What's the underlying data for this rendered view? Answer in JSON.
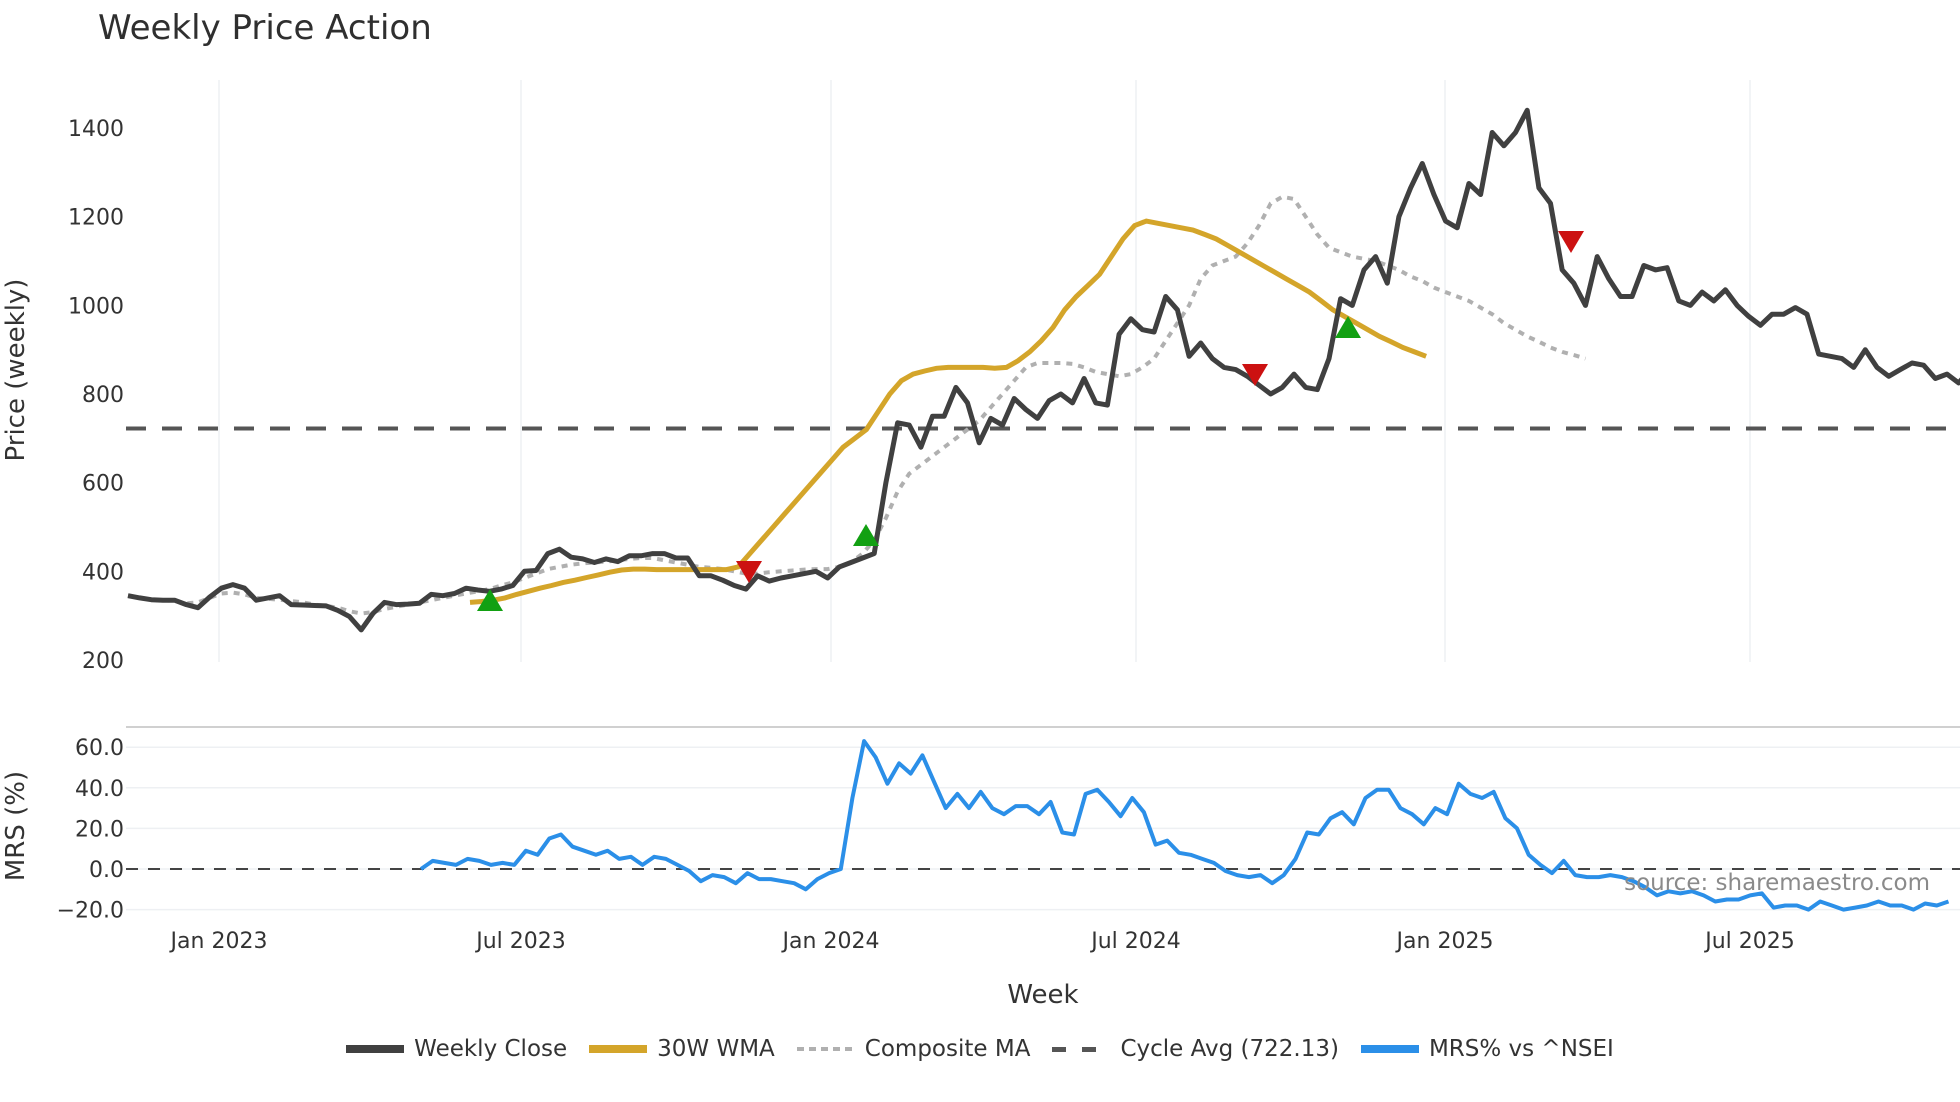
{
  "title": "Weekly Price Action",
  "source_text": "source: sharemaestro.com",
  "colors": {
    "weekly_close": "#404040",
    "wma30": "#d4a52a",
    "composite_ma": "#b0b0b0",
    "cycle_avg": "#555555",
    "mrs": "#2b8fe8",
    "buy_marker": "#12a012",
    "sell_marker": "#cc1111"
  },
  "legend": [
    {
      "key": "weekly_close",
      "label": "Weekly Close",
      "style": "solid"
    },
    {
      "key": "wma30",
      "label": "30W WMA",
      "style": "solid"
    },
    {
      "key": "composite_ma",
      "label": "Composite MA",
      "style": "dotted"
    },
    {
      "key": "cycle_avg",
      "label": "Cycle Avg (722.13)",
      "style": "dashed"
    },
    {
      "key": "mrs",
      "label": "MRS% vs ^NSEI",
      "style": "solid"
    }
  ],
  "chart_data": [
    {
      "type": "line",
      "title": "Weekly Price Action",
      "xlabel": "Week",
      "ylabel": "Price (weekly)",
      "ylim": [
        200,
        1450
      ],
      "yticks": [
        200,
        400,
        600,
        800,
        1000,
        1200,
        1400
      ],
      "xticks": [
        "Jan 2023",
        "Jul 2023",
        "Jan 2024",
        "Jul 2024",
        "Jan 2025",
        "Jul 2025"
      ],
      "grid": "vertical",
      "cycle_avg": 722.13,
      "series": [
        {
          "name": "Weekly Close",
          "x_start": "Nov 2022",
          "values": [
            345,
            340,
            336,
            335,
            335,
            325,
            318,
            342,
            362,
            370,
            362,
            335,
            340,
            345,
            325,
            324,
            323,
            322,
            312,
            298,
            268,
            305,
            330,
            325,
            326,
            328,
            348,
            345,
            350,
            362,
            358,
            355,
            360,
            368,
            400,
            402,
            440,
            450,
            432,
            428,
            420,
            428,
            422,
            435,
            435,
            440,
            440,
            430,
            430,
            390,
            390,
            380,
            368,
            360,
            390,
            378,
            385,
            390,
            395,
            400,
            385,
            410,
            420,
            430,
            440,
            600,
            735,
            730,
            680,
            750,
            750,
            815,
            780,
            690,
            745,
            730,
            790,
            765,
            745,
            785,
            800,
            780,
            835,
            780,
            775,
            935,
            970,
            945,
            940,
            1020,
            990,
            885,
            915,
            880,
            860,
            855,
            840,
            820,
            800,
            815,
            845,
            815,
            810,
            880,
            1015,
            1000,
            1080,
            1110,
            1050,
            1200,
            1265,
            1320,
            1250,
            1190,
            1175,
            1275,
            1250,
            1390,
            1360,
            1390,
            1440,
            1265,
            1230,
            1080,
            1050,
            1000,
            1110,
            1060,
            1020,
            1020,
            1090,
            1080,
            1085,
            1010,
            1000,
            1030,
            1010,
            1035,
            1000,
            975,
            955,
            980,
            980,
            995,
            980,
            890,
            885,
            880,
            860,
            900,
            860,
            840,
            855,
            870,
            865,
            835,
            845,
            825,
            855,
            835,
            840
          ]
        },
        {
          "name": "30W WMA",
          "x_start": "Jun 2023",
          "values": [
            330,
            332,
            335,
            340,
            348,
            355,
            362,
            368,
            375,
            380,
            386,
            392,
            398,
            403,
            405,
            405,
            404,
            404,
            404,
            404,
            404,
            404,
            404,
            410,
            440,
            470,
            500,
            530,
            560,
            590,
            620,
            650,
            680,
            700,
            720,
            760,
            800,
            830,
            845,
            852,
            858,
            860,
            860,
            860,
            860,
            858,
            860,
            875,
            895,
            920,
            950,
            990,
            1020,
            1045,
            1070,
            1110,
            1150,
            1180,
            1190,
            1185,
            1180,
            1175,
            1170,
            1160,
            1150,
            1135,
            1120,
            1105,
            1090,
            1075,
            1060,
            1045,
            1030,
            1010,
            990,
            975,
            960,
            945,
            930,
            918,
            905,
            895,
            885
          ]
        },
        {
          "name": "Composite MA",
          "x_start": "Nov 2022",
          "values": [
            345,
            340,
            336,
            335,
            333,
            328,
            330,
            340,
            350,
            352,
            348,
            340,
            338,
            336,
            333,
            330,
            325,
            322,
            318,
            310,
            305,
            308,
            315,
            320,
            325,
            330,
            335,
            340,
            345,
            350,
            355,
            360,
            368,
            375,
            385,
            395,
            405,
            410,
            415,
            418,
            420,
            422,
            425,
            428,
            430,
            430,
            425,
            420,
            415,
            410,
            408,
            405,
            400,
            395,
            395,
            398,
            400,
            402,
            404,
            405,
            405,
            410,
            420,
            440,
            470,
            520,
            580,
            620,
            640,
            660,
            680,
            700,
            720,
            740,
            770,
            800,
            830,
            860,
            870,
            870,
            870,
            868,
            860,
            850,
            845,
            840,
            845,
            860,
            880,
            920,
            960,
            1000,
            1060,
            1090,
            1100,
            1110,
            1140,
            1180,
            1230,
            1245,
            1240,
            1200,
            1160,
            1130,
            1120,
            1110,
            1105,
            1100,
            1090,
            1080,
            1065,
            1055,
            1040,
            1030,
            1020,
            1010,
            995,
            980,
            960,
            945,
            930,
            918,
            905,
            895,
            888,
            880
          ]
        },
        {
          "name": "MRS% vs ^NSEI",
          "ylabel": "MRS (%)",
          "ylim": [
            -25,
            65
          ],
          "yticks": [
            -20.0,
            0.0,
            20.0,
            40.0,
            60.0
          ],
          "x_start": "May 2023",
          "values": [
            0,
            4,
            3,
            2,
            5,
            4,
            2,
            3,
            2,
            9,
            7,
            15,
            17,
            11,
            9,
            7,
            9,
            5,
            6,
            2,
            6,
            5,
            2,
            -1,
            -6,
            -3,
            -4,
            -7,
            -2,
            -5,
            -5,
            -6,
            -7,
            -10,
            -5,
            -2,
            0,
            35,
            63,
            55,
            42,
            52,
            47,
            56,
            43,
            30,
            37,
            30,
            38,
            30,
            27,
            31,
            31,
            27,
            33,
            18,
            17,
            37,
            39,
            33,
            26,
            35,
            28,
            12,
            14,
            8,
            7,
            5,
            3,
            -1,
            -3,
            -4,
            -3,
            -7,
            -3,
            5,
            18,
            17,
            25,
            28,
            22,
            35,
            39,
            39,
            30,
            27,
            22,
            30,
            27,
            42,
            37,
            35,
            38,
            25,
            20,
            7,
            2,
            -2,
            4,
            -3,
            -4,
            -4,
            -3,
            -4,
            -6,
            -9,
            -13,
            -11,
            -12,
            -11,
            -13,
            -16,
            -15,
            -15,
            -13,
            -12,
            -19,
            -18,
            -18,
            -20,
            -16,
            -18,
            -20,
            -19,
            -18,
            -16,
            -18,
            -18,
            -20,
            -17,
            -18,
            -16
          ]
        },
        {
          "name": "Cycle Avg (722.13)",
          "values": [
            722.13
          ]
        }
      ],
      "markers": {
        "buy": [
          {
            "x": "Jun 2023",
            "y": 345
          },
          {
            "x": "Jan 2024",
            "y": 478
          },
          {
            "x": "Nov 2024",
            "y": 945
          }
        ],
        "sell": [
          {
            "x": "Nov 2023",
            "y": 395
          },
          {
            "x": "Sep 2024",
            "y": 835
          },
          {
            "x": "Mar 2025",
            "y": 1140
          }
        ]
      },
      "legend_position": "bottom"
    }
  ]
}
